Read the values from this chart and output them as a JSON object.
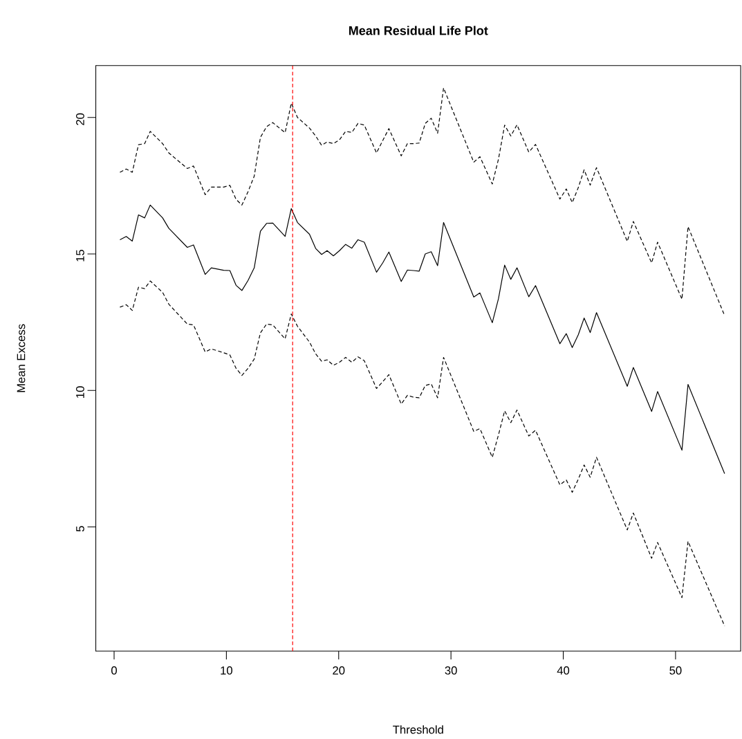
{
  "chart_data": {
    "type": "line",
    "title": "Mean Residual Life Plot",
    "xlabel": "Threshold",
    "ylabel": "Mean Excess",
    "x": [
      0.52,
      1.08,
      1.62,
      2.17,
      2.72,
      3.22,
      4.32,
      4.87,
      6.52,
      7.07,
      8.11,
      8.66,
      9.76,
      10.31,
      10.86,
      11.38,
      11.93,
      12.48,
      13.03,
      13.58,
      14.13,
      15.23,
      15.78,
      16.33,
      17.4,
      17.95,
      18.48,
      18.97,
      19.53,
      20.07,
      20.62,
      21.17,
      21.72,
      22.28,
      23.37,
      23.92,
      24.47,
      25.57,
      26.12,
      26.67,
      27.17,
      27.71,
      28.24,
      28.81,
      29.34,
      32.03,
      32.58,
      33.68,
      34.23,
      34.78,
      35.33,
      35.88,
      36.93,
      37.53,
      39.7,
      40.27,
      40.8,
      41.34,
      41.86,
      42.4,
      42.96,
      45.7,
      46.24,
      47.87,
      48.4,
      50.57,
      51.11,
      54.37
    ],
    "series": [
      {
        "color": "#000000",
        "line_style": "solid",
        "values": [
          15.52,
          15.64,
          15.47,
          16.43,
          16.32,
          16.79,
          16.32,
          15.94,
          15.24,
          15.33,
          14.25,
          14.49,
          14.4,
          14.39,
          13.85,
          13.66,
          14.03,
          14.49,
          15.83,
          16.12,
          16.13,
          15.64,
          16.66,
          16.15,
          15.72,
          15.2,
          14.98,
          15.12,
          14.93,
          15.12,
          15.35,
          15.21,
          15.52,
          15.43,
          14.33,
          14.67,
          15.07,
          13.99,
          14.41,
          14.39,
          14.37,
          15.0,
          15.08,
          14.57,
          16.15,
          13.42,
          13.57,
          12.48,
          13.36,
          14.59,
          14.07,
          14.49,
          13.43,
          13.84,
          11.71,
          12.08,
          11.57,
          12.04,
          12.65,
          12.12,
          12.85,
          10.15,
          10.84,
          9.23,
          9.96,
          7.81,
          10.22,
          6.95
        ]
      },
      {
        "color": "#000000",
        "line_style": "dashed",
        "values": [
          17.99,
          18.11,
          17.99,
          19.0,
          19.04,
          19.49,
          19.04,
          18.7,
          18.13,
          18.22,
          17.17,
          17.45,
          17.45,
          17.51,
          17.0,
          16.79,
          17.28,
          17.85,
          19.27,
          19.66,
          19.81,
          19.44,
          20.52,
          20.0,
          19.61,
          19.32,
          18.98,
          19.1,
          19.04,
          19.18,
          19.49,
          19.45,
          19.78,
          19.72,
          18.7,
          19.15,
          19.59,
          18.59,
          19.04,
          19.04,
          19.06,
          19.78,
          19.97,
          19.42,
          21.08,
          18.36,
          18.56,
          17.56,
          18.47,
          19.72,
          19.32,
          19.73,
          18.73,
          19.01,
          17.01,
          17.38,
          16.88,
          17.43,
          18.08,
          17.52,
          18.16,
          15.46,
          16.19,
          14.67,
          15.43,
          13.34,
          16.0,
          12.74
        ]
      },
      {
        "color": "#000000",
        "line_style": "dashed",
        "values": [
          13.05,
          13.14,
          12.93,
          13.78,
          13.73,
          14.01,
          13.59,
          13.16,
          12.43,
          12.4,
          11.41,
          11.52,
          11.38,
          11.3,
          10.81,
          10.55,
          10.81,
          11.15,
          12.11,
          12.43,
          12.4,
          11.89,
          12.8,
          12.35,
          11.77,
          11.34,
          11.07,
          11.12,
          10.92,
          11.03,
          11.21,
          11.03,
          11.23,
          11.09,
          10.07,
          10.32,
          10.58,
          9.5,
          9.82,
          9.75,
          9.73,
          10.18,
          10.24,
          9.73,
          11.21,
          8.5,
          8.6,
          7.55,
          8.37,
          9.25,
          8.82,
          9.28,
          8.33,
          8.54,
          6.54,
          6.72,
          6.27,
          6.75,
          7.27,
          6.82,
          7.55,
          4.89,
          5.51,
          3.85,
          4.43,
          2.41,
          4.47,
          1.37
        ]
      }
    ],
    "xlim": [
      -1.63,
      55.8
    ],
    "ylim": [
      0.45,
      21.9
    ],
    "xticks": [
      0,
      10,
      20,
      30,
      40,
      50
    ],
    "yticks": [
      5,
      10,
      15,
      20
    ],
    "ref_lines": [
      {
        "axis": "x",
        "value": 15.9,
        "color": "#ff0000",
        "line_style": "dashed"
      }
    ],
    "marker": "none"
  }
}
